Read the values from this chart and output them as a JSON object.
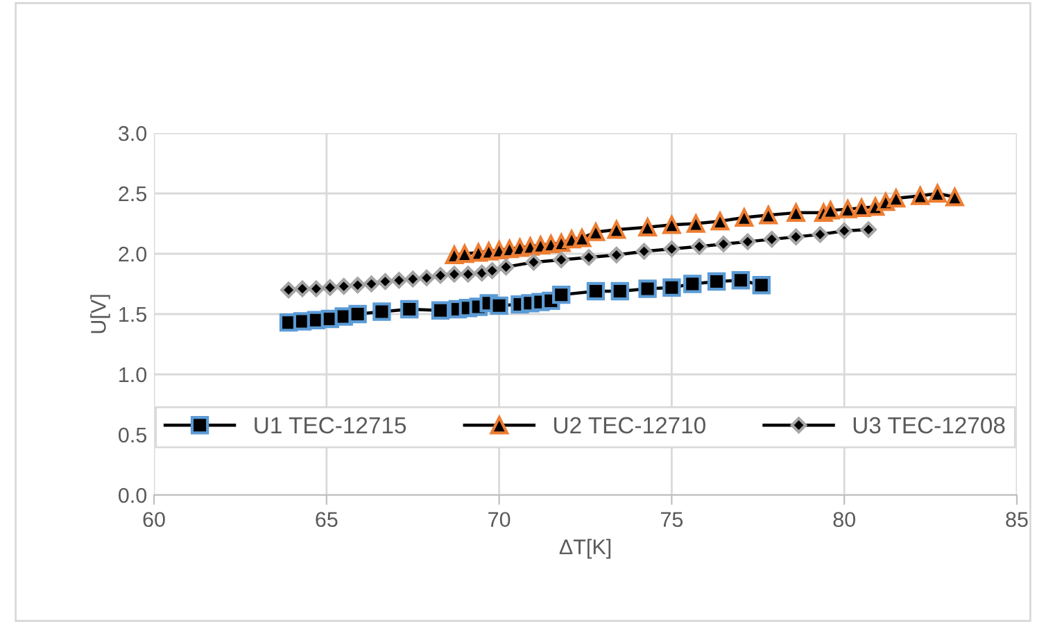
{
  "chart_data": {
    "type": "line",
    "xlabel": "ΔT[K]",
    "ylabel": "U[V]",
    "xlim": [
      60,
      85
    ],
    "xticks": [
      60,
      65,
      70,
      75,
      80,
      85
    ],
    "ylim": [
      0,
      3.0
    ],
    "yticks": [
      {
        "value": 0,
        "label": "0.0"
      },
      {
        "value": 0.5,
        "label": "0.5"
      },
      {
        "value": 1.0,
        "label": "1.0"
      },
      {
        "value": 1.5,
        "label": "1.5"
      },
      {
        "value": 2.0,
        "label": "2.0"
      },
      {
        "value": 2.5,
        "label": "2.5"
      },
      {
        "value": 3.0,
        "label": "3.0"
      }
    ],
    "grid": true,
    "legend": "bottom",
    "line_style": "solid",
    "series": [
      {
        "name": "U1 TEC-12715",
        "color": "#5b9bd5",
        "marker": "square",
        "x": [
          63.9,
          64.3,
          64.7,
          65.1,
          65.5,
          65.9,
          66.6,
          67.4,
          68.3,
          68.8,
          69.1,
          69.4,
          69.7,
          70.0,
          70.6,
          70.9,
          71.2,
          71.5,
          71.8,
          72.8,
          73.5,
          74.3,
          75.0,
          75.6,
          76.3,
          77.0,
          77.6
        ],
        "values": [
          1.43,
          1.44,
          1.45,
          1.46,
          1.48,
          1.5,
          1.52,
          1.54,
          1.53,
          1.54,
          1.55,
          1.56,
          1.59,
          1.57,
          1.58,
          1.59,
          1.6,
          1.61,
          1.66,
          1.69,
          1.69,
          1.71,
          1.72,
          1.75,
          1.77,
          1.78,
          1.74
        ]
      },
      {
        "name": "U2 TEC-12710",
        "color": "#ed7d31",
        "marker": "triangle",
        "x": [
          68.7,
          69.0,
          69.4,
          69.7,
          70.0,
          70.3,
          70.6,
          70.9,
          71.2,
          71.5,
          71.8,
          72.1,
          72.4,
          72.8,
          73.4,
          74.3,
          75.0,
          75.7,
          76.4,
          77.1,
          77.8,
          78.6,
          79.4,
          79.6,
          80.1,
          80.5,
          80.9,
          81.2,
          81.5,
          82.2,
          82.7,
          83.2
        ],
        "values": [
          1.99,
          2.0,
          2.01,
          2.02,
          2.03,
          2.04,
          2.05,
          2.06,
          2.07,
          2.08,
          2.09,
          2.12,
          2.13,
          2.18,
          2.2,
          2.22,
          2.24,
          2.25,
          2.27,
          2.3,
          2.32,
          2.34,
          2.34,
          2.36,
          2.37,
          2.38,
          2.39,
          2.43,
          2.46,
          2.48,
          2.5,
          2.47
        ]
      },
      {
        "name": "U3 TEC-12708",
        "color": "#a5a5a5",
        "marker": "diamond",
        "x": [
          63.9,
          64.3,
          64.7,
          65.1,
          65.5,
          65.9,
          66.3,
          66.7,
          67.1,
          67.5,
          67.9,
          68.3,
          68.7,
          69.1,
          69.5,
          69.8,
          70.2,
          71.0,
          71.8,
          72.6,
          73.4,
          74.2,
          75.0,
          75.8,
          76.5,
          77.2,
          77.9,
          78.6,
          79.3,
          80.0,
          80.7
        ],
        "values": [
          1.7,
          1.71,
          1.71,
          1.72,
          1.73,
          1.74,
          1.75,
          1.77,
          1.78,
          1.79,
          1.8,
          1.82,
          1.83,
          1.83,
          1.84,
          1.86,
          1.89,
          1.93,
          1.95,
          1.97,
          1.99,
          2.02,
          2.04,
          2.06,
          2.08,
          2.1,
          2.12,
          2.14,
          2.16,
          2.19,
          2.2
        ]
      }
    ]
  }
}
